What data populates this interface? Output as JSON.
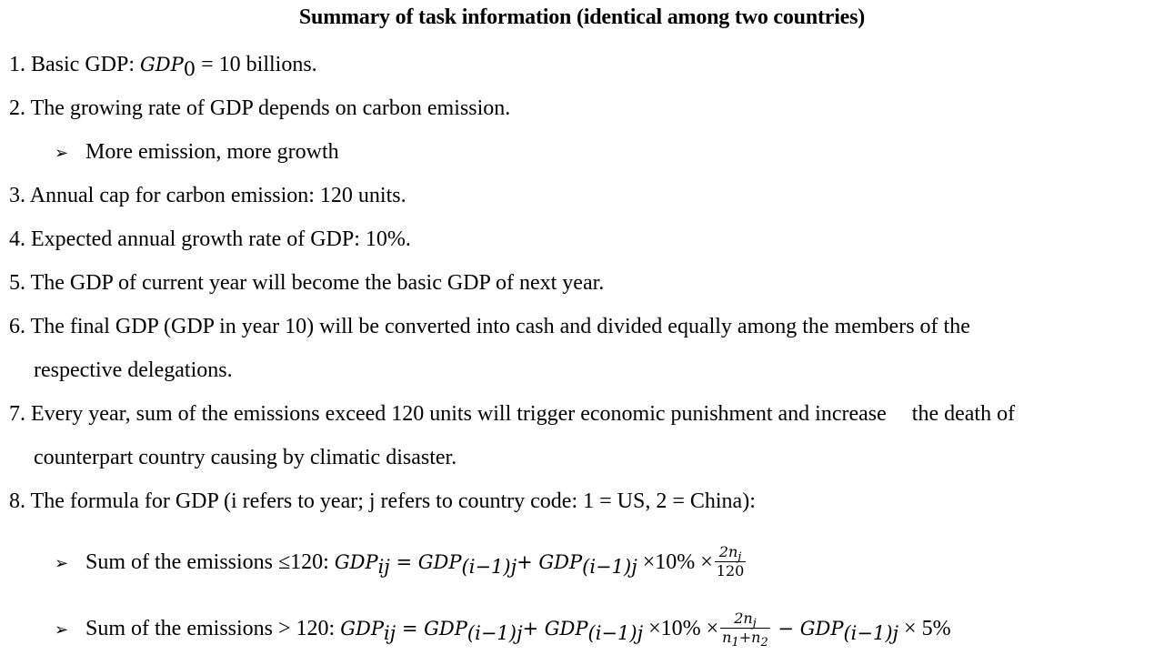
{
  "title": "Summary of task information (identical among two countries)",
  "items": [
    {
      "num": "1.",
      "pre": "Basic GDP: ",
      "var": "GDP",
      "sub": "0",
      "post": " = 10 billions."
    },
    {
      "num": "2.",
      "text": "The growing rate of GDP depends on carbon emission."
    },
    {
      "bullet": "More emission, more growth"
    },
    {
      "num": "3.",
      "text": "Annual cap for carbon emission: 120 units."
    },
    {
      "num": "4.",
      "text": "Expected annual growth rate of GDP: 10%."
    },
    {
      "num": "5.",
      "text": "The GDP of current year will become the basic GDP of next year."
    },
    {
      "num": "6.",
      "text": "The final GDP (GDP in year 10) will be converted into cash and divided equally among the members of the",
      "cont": "respective delegations."
    },
    {
      "num": "7.",
      "text_a": "Every year, sum of the emissions exceed 120 units will trigger economic punishment and increase",
      "text_b": "the death of",
      "cont": "counterpart country causing by climatic disaster."
    },
    {
      "num": "8.",
      "text": "The formula for GDP (i refers to year; j refers to country code: 1 = US, 2 = China):"
    }
  ],
  "formula1": {
    "label": "Sum of the emissions ≤120: ",
    "lhs": "GDP",
    "lhs_sub": "ij",
    "eq": " = ",
    "t1": "GDP",
    "t1_sub": "(i−1)j",
    "plus": "+ ",
    "t2": "GDP",
    "t2_sub": "(i−1)j",
    "times1": " ×10% ×",
    "frac_num": "2n",
    "frac_num_sub": "j",
    "frac_den": "120"
  },
  "formula2": {
    "label": "Sum of the emissions > 120: ",
    "lhs": "GDP",
    "lhs_sub": "ij",
    "eq": " = ",
    "t1": "GDP",
    "t1_sub": "(i−1)j",
    "plus": "+ ",
    "t2": "GDP",
    "t2_sub": "(i−1)j",
    "times1": " ×10% ×",
    "frac_num": "2n",
    "frac_num_sub": "j",
    "frac_den_a": "n",
    "frac_den_a_sub": "1",
    "frac_den_plus": "+",
    "frac_den_b": "n",
    "frac_den_b_sub": "2",
    "minus": " − ",
    "t3": "GDP",
    "t3_sub": "(i−1)j",
    "times2": " × 5%"
  }
}
